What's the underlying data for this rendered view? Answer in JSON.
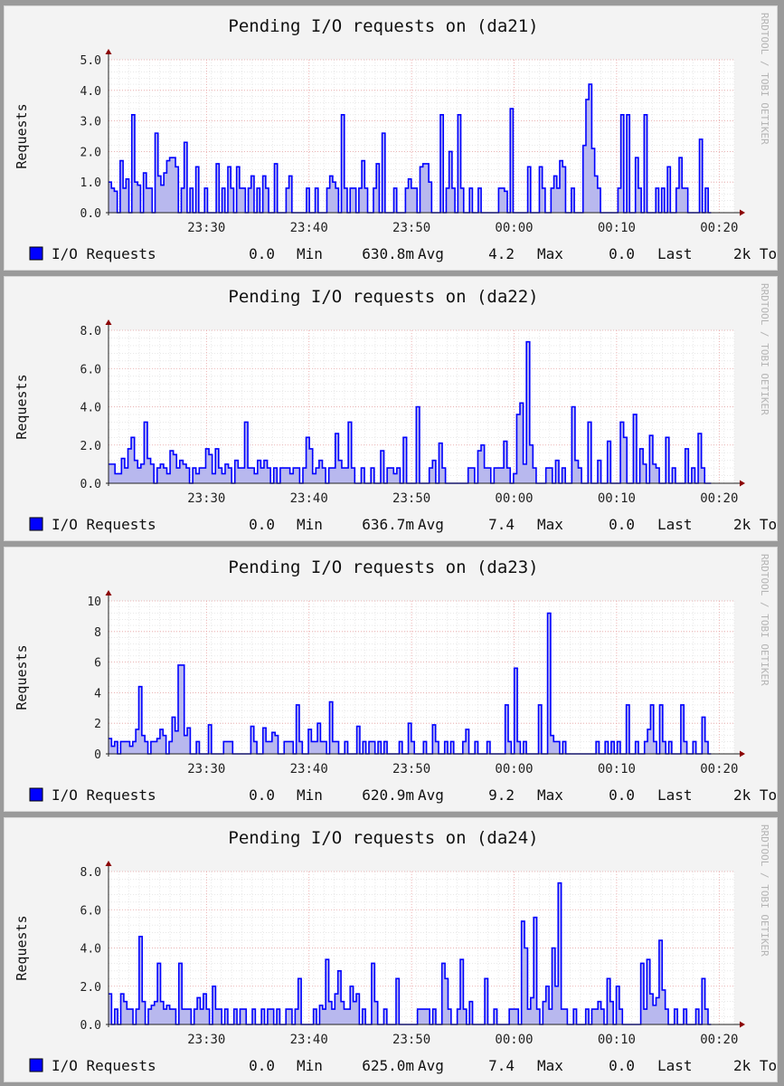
{
  "watermark": "RRDTOOL / TOBI OETIKER",
  "legend_swatch_color": "#0000ff",
  "fill_color": "#b8b8ee",
  "grid_major_color": "#e8a0a0",
  "axis_color": "#8b0000",
  "chart_data": [
    {
      "type": "area",
      "title": "Pending I/O requests on (da21)",
      "ylabel": "Requests",
      "ylim": [
        0,
        5
      ],
      "yticks": [
        0,
        1,
        2,
        3,
        4,
        5
      ],
      "ytick_labels": [
        "0.0",
        "1.0",
        "2.0",
        "3.0",
        "4.0",
        "5.0"
      ],
      "xticks": [
        "23:30",
        "23:40",
        "23:50",
        "00:00",
        "00:10",
        "00:20"
      ],
      "series": [
        {
          "name": "I/O Requests",
          "values": [
            1,
            0.8,
            0.7,
            0,
            1.7,
            0.8,
            1.1,
            0,
            3.2,
            1,
            0.9,
            0,
            1.3,
            0.8,
            0.8,
            0,
            2.6,
            1.2,
            0.9,
            1.3,
            1.7,
            1.8,
            1.8,
            1.5,
            0,
            0.8,
            2.3,
            0,
            0.8,
            0,
            1.5,
            0,
            0,
            0.8,
            0,
            0,
            0,
            1.6,
            0,
            0.8,
            0,
            1.5,
            0.8,
            0,
            1.5,
            0.8,
            0.8,
            0,
            0.8,
            1.2,
            0,
            0.8,
            0,
            1.2,
            0.8,
            0,
            0,
            1.6,
            0,
            0,
            0,
            0.8,
            1.2,
            0,
            0,
            0,
            0,
            0,
            0.8,
            0,
            0,
            0.8,
            0,
            0,
            0,
            0.8,
            1.2,
            1,
            0.8,
            0,
            3.2,
            0.8,
            0,
            0.8,
            0.8,
            0,
            0.8,
            1.7,
            0.8,
            0,
            0,
            0.8,
            1.6,
            0,
            2.6,
            0,
            0,
            0,
            0.8,
            0,
            0,
            0,
            0.8,
            1.1,
            0.8,
            0.8,
            0,
            1.5,
            1.6,
            1.6,
            1,
            0,
            0,
            0,
            3.2,
            0,
            0.8,
            2,
            0.8,
            0,
            3.2,
            0.8,
            0,
            0,
            0.8,
            0,
            0,
            0.8,
            0,
            0,
            0,
            0,
            0,
            0,
            0.8,
            0.8,
            0.7,
            0,
            3.4,
            0,
            0,
            0,
            0,
            0,
            1.5,
            0,
            0,
            0,
            1.5,
            0.8,
            0,
            0,
            0.8,
            1.2,
            0.8,
            1.7,
            1.5,
            0,
            0,
            0.8,
            0,
            0,
            0,
            2.2,
            3.7,
            4.2,
            2.1,
            1.2,
            0.8,
            0,
            0,
            0,
            0,
            0,
            0,
            0.8,
            3.2,
            0,
            3.2,
            0,
            0,
            1.8,
            0.8,
            0,
            3.2,
            0,
            0,
            0,
            0.8,
            0,
            0.8,
            0,
            1.5,
            0,
            0,
            0.8,
            1.8,
            0.8,
            0.8,
            0,
            0,
            0,
            0,
            2.4,
            0,
            0.8,
            0
          ]
        }
      ],
      "legend": {
        "label": "I/O Requests",
        "min": "0.0",
        "min_label": "Min",
        "avg": "630.8m",
        "avg_label": "Avg",
        "max": "4.2",
        "max_label": "Max",
        "last": "0.0",
        "last_label": "Last",
        "extra": "2k To"
      }
    },
    {
      "type": "area",
      "title": "Pending I/O requests on (da22)",
      "ylabel": "Requests",
      "ylim": [
        0,
        8
      ],
      "yticks": [
        0,
        2,
        4,
        6,
        8
      ],
      "ytick_labels": [
        "0.0",
        "2.0",
        "4.0",
        "6.0",
        "8.0"
      ],
      "xticks": [
        "23:30",
        "23:40",
        "23:50",
        "00:00",
        "00:10",
        "00:20"
      ],
      "series": [
        {
          "name": "I/O Requests",
          "values": [
            1,
            1,
            0.5,
            0.5,
            1.3,
            0.8,
            1.8,
            2.4,
            1.2,
            0.8,
            1,
            3.2,
            1.3,
            1,
            0,
            0.8,
            1,
            0.8,
            0.5,
            1.7,
            1.5,
            0.8,
            1.2,
            1,
            0.8,
            0,
            0.8,
            0.5,
            0.8,
            0.8,
            1.8,
            1.5,
            0.5,
            1.8,
            0.8,
            0.5,
            1,
            0.8,
            0,
            1.2,
            0.8,
            0.8,
            3.2,
            0.8,
            0.8,
            0.5,
            1.2,
            0.8,
            1.2,
            0.8,
            0,
            0.8,
            0,
            0.8,
            0.8,
            0.8,
            0.5,
            0.8,
            0.8,
            0,
            0.8,
            2.4,
            1.8,
            0.5,
            0.8,
            1.2,
            0.8,
            0,
            0.8,
            0.8,
            2.6,
            1.2,
            0.8,
            0.8,
            3.2,
            0.8,
            0,
            0,
            0.8,
            0,
            0,
            0.8,
            0,
            0,
            1.7,
            0,
            0.8,
            0.8,
            0.5,
            0.8,
            0,
            2.4,
            0,
            0,
            0,
            4,
            0,
            0,
            0,
            0.8,
            1.2,
            0,
            2.1,
            0.8,
            0,
            0,
            0,
            0,
            0,
            0,
            0,
            0.8,
            0.8,
            0,
            1.7,
            2,
            0.8,
            0.8,
            0,
            0.8,
            0.8,
            0.8,
            2.2,
            0.8,
            0,
            0.5,
            3.6,
            4.2,
            1,
            7.4,
            2,
            0.8,
            0,
            0,
            0,
            0.8,
            0.8,
            0,
            1.2,
            0,
            0.8,
            0,
            0,
            4.0,
            1.2,
            0.8,
            0,
            0,
            3.2,
            0,
            0,
            1.2,
            0,
            0,
            2.2,
            0,
            0,
            0,
            3.2,
            2.4,
            0,
            0,
            3.6,
            0,
            1.8,
            1,
            0,
            2.5,
            1,
            0.8,
            0,
            0,
            2.4,
            0,
            0.8,
            0,
            0,
            0,
            1.8,
            0,
            0.8,
            0,
            2.6,
            0.8,
            0,
            0
          ]
        }
      ],
      "legend": {
        "label": "I/O Requests",
        "min": "0.0",
        "min_label": "Min",
        "avg": "636.7m",
        "avg_label": "Avg",
        "max": "7.4",
        "max_label": "Max",
        "last": "0.0",
        "last_label": "Last",
        "extra": "2k To"
      }
    },
    {
      "type": "area",
      "title": "Pending I/O requests on (da23)",
      "ylabel": "Requests",
      "ylim": [
        0,
        10
      ],
      "yticks": [
        0,
        2,
        4,
        6,
        8,
        10
      ],
      "ytick_labels": [
        "0",
        "2",
        "4",
        "6",
        "8",
        "10"
      ],
      "xticks": [
        "23:30",
        "23:40",
        "23:50",
        "00:00",
        "00:10",
        "00:20"
      ],
      "series": [
        {
          "name": "I/O Requests",
          "values": [
            1,
            0.5,
            0.8,
            0,
            0.8,
            0.8,
            0.8,
            0.5,
            0.8,
            1.6,
            4.4,
            1.2,
            0.8,
            0,
            0.8,
            0.8,
            1,
            1.6,
            1.2,
            0,
            0.8,
            2.4,
            1.5,
            5.8,
            5.8,
            1.2,
            1.7,
            0,
            0,
            0.8,
            0,
            0,
            0,
            1.9,
            0,
            0,
            0,
            0,
            0.8,
            0.8,
            0.8,
            0,
            0,
            0,
            0,
            0,
            0,
            1.8,
            0.8,
            0,
            0,
            1.7,
            0.8,
            0.8,
            1.4,
            1.2,
            0,
            0,
            0.8,
            0.8,
            0.8,
            0,
            3.2,
            0.8,
            0,
            0,
            1.6,
            0.8,
            0.8,
            2,
            0.8,
            0.8,
            0,
            3.4,
            0.8,
            0.8,
            0,
            0,
            0.8,
            0,
            0,
            0,
            1.8,
            0,
            0.8,
            0,
            0.8,
            0.8,
            0,
            0.8,
            0,
            0.8,
            0,
            0,
            0,
            0,
            0.8,
            0,
            0,
            2,
            0.8,
            0,
            0,
            0,
            0.8,
            0,
            0,
            1.9,
            0.8,
            0,
            0,
            0.8,
            0,
            0.8,
            0,
            0,
            0,
            0.8,
            1.6,
            0,
            0,
            0.8,
            0,
            0,
            0,
            0.8,
            0,
            0,
            0,
            0,
            0,
            3.2,
            0.8,
            0,
            5.6,
            0.8,
            0,
            0.8,
            0,
            0,
            0,
            0,
            3.2,
            0,
            0,
            9.2,
            1.2,
            0.8,
            0.8,
            0,
            0.8,
            0,
            0,
            0,
            0,
            0,
            0,
            0,
            0,
            0,
            0,
            0.8,
            0,
            0,
            0.8,
            0,
            0.8,
            0,
            0.8,
            0,
            0,
            3.2,
            0,
            0,
            0.8,
            0,
            0,
            0.8,
            1.6,
            3.2,
            0.8,
            0,
            3.2,
            0.8,
            0,
            0.8,
            0,
            0,
            0,
            3.2,
            0.8,
            0,
            0,
            0.8,
            0,
            0,
            2.4,
            0.8,
            0
          ]
        }
      ],
      "legend": {
        "label": "I/O Requests",
        "min": "0.0",
        "min_label": "Min",
        "avg": "620.9m",
        "avg_label": "Avg",
        "max": "9.2",
        "max_label": "Max",
        "last": "0.0",
        "last_label": "Last",
        "extra": "2k To"
      }
    },
    {
      "type": "area",
      "title": "Pending I/O requests on (da24)",
      "ylabel": "Requests",
      "ylim": [
        0,
        8
      ],
      "yticks": [
        0,
        2,
        4,
        6,
        8
      ],
      "ytick_labels": [
        "0.0",
        "2.0",
        "4.0",
        "6.0",
        "8.0"
      ],
      "xticks": [
        "23:30",
        "23:40",
        "23:50",
        "00:00",
        "00:10",
        "00:20"
      ],
      "series": [
        {
          "name": "I/O Requests",
          "values": [
            1.6,
            0,
            0.8,
            0,
            1.6,
            1.2,
            0.8,
            0.8,
            0,
            0.8,
            4.6,
            1.2,
            0,
            0.8,
            1,
            1.2,
            3.2,
            1.2,
            0.8,
            1,
            0.8,
            0.8,
            0,
            3.2,
            0.8,
            0.8,
            0.8,
            0,
            0.8,
            1.4,
            0.8,
            1.6,
            0.8,
            0,
            2.0,
            0.8,
            0.8,
            0,
            0.8,
            0,
            0,
            0.8,
            0,
            0.8,
            0.8,
            0,
            0,
            0.8,
            0,
            0,
            0.8,
            0,
            0.8,
            0.8,
            0,
            0.8,
            0,
            0,
            0.8,
            0.8,
            0,
            0.8,
            2.4,
            0,
            0,
            0,
            0,
            0.8,
            0,
            1,
            0.8,
            3.4,
            1.2,
            0.8,
            1.6,
            2.8,
            1.2,
            0.8,
            0.8,
            2,
            1.2,
            1.6,
            0,
            0.8,
            0,
            0,
            3.2,
            1.2,
            0,
            0,
            0.8,
            0,
            0,
            0,
            2.4,
            0,
            0,
            0,
            0,
            0,
            0,
            0.8,
            0.8,
            0.8,
            0.8,
            0,
            0.8,
            0,
            0,
            3.2,
            2.4,
            0.8,
            0,
            0,
            0.8,
            3.4,
            0.8,
            0,
            1.2,
            0,
            0,
            0,
            0,
            2.4,
            0,
            0,
            0.8,
            0,
            0,
            0,
            0,
            0.8,
            0.8,
            0.8,
            0,
            5.4,
            4,
            0.8,
            1.4,
            5.6,
            0.8,
            0,
            1.2,
            2,
            0.8,
            4,
            2,
            7.4,
            0.8,
            0.8,
            0,
            0,
            0.8,
            0,
            0,
            0,
            0.8,
            0,
            0.8,
            0.8,
            1.2,
            0.8,
            0,
            2.4,
            1.2,
            0,
            2.0,
            0.8,
            0,
            0,
            0,
            0,
            0,
            0,
            3.2,
            0.8,
            3.4,
            1.6,
            1,
            1.4,
            4.4,
            1.8,
            0.8,
            0,
            0,
            0.8,
            0,
            0,
            0.8,
            0,
            0,
            0,
            0.8,
            0,
            2.4,
            0.8,
            0
          ]
        }
      ],
      "legend": {
        "label": "I/O Requests",
        "min": "0.0",
        "min_label": "Min",
        "avg": "625.0m",
        "avg_label": "Avg",
        "max": "7.4",
        "max_label": "Max",
        "last": "0.0",
        "last_label": "Last",
        "extra": "2k To"
      }
    }
  ]
}
